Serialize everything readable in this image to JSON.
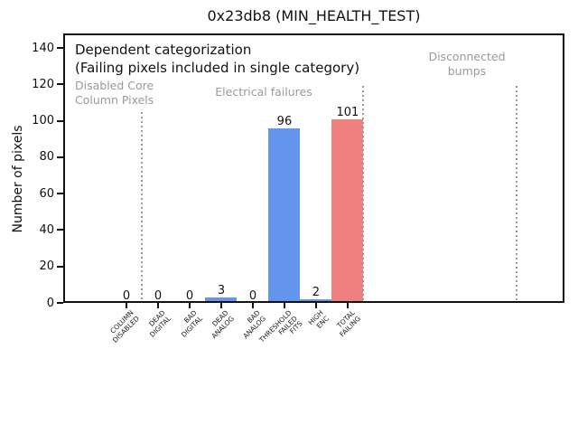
{
  "chart_data": {
    "type": "bar",
    "title": "0x23db8 (MIN_HEALTH_TEST)",
    "xlabel": "",
    "ylabel": "Number of pixels",
    "categories": [
      "COLUMN\nDISABLED",
      "DEAD\nDIGITAL",
      "BAD\nDIGITAL",
      "DEAD\nANALOG",
      "BAD\nANALOG",
      "THRESHOLD\nFAILED\nFITS",
      "HIGH\nENC",
      "TOTAL\nFAILING"
    ],
    "values": [
      0,
      0,
      0,
      3,
      0,
      96,
      2,
      101
    ],
    "bar_colors": [
      "#6495ED",
      "#6495ED",
      "#6495ED",
      "#6495ED",
      "#6495ED",
      "#6495ED",
      "#6495ED",
      "#F08080"
    ],
    "bar_width": 1.0,
    "yticks": [
      0,
      20,
      40,
      60,
      80,
      100,
      120,
      140
    ],
    "ylim": [
      0,
      148
    ],
    "xlim": [
      -2,
      13.86
    ],
    "grid": false,
    "legend": false,
    "value_labels_shown": true,
    "vlines": [
      {
        "x": 0.5,
        "top": 105,
        "color": "#999999",
        "style": "dotted"
      },
      {
        "x": 7.5,
        "top": 119,
        "color": "#999999",
        "style": "dotted"
      },
      {
        "x": 12.35,
        "top": 119,
        "color": "#999999",
        "style": "dotted"
      }
    ],
    "annotations": {
      "dependent_line1": "Dependent categorization",
      "dependent_line2": "(Failing pixels included in single category)",
      "disabled_core": "Disabled Core\nColumn Pixels",
      "electrical": "Electrical failures",
      "disconnected": "Disconnected\nbumps",
      "gray_color": "#9a9a9a"
    }
  }
}
